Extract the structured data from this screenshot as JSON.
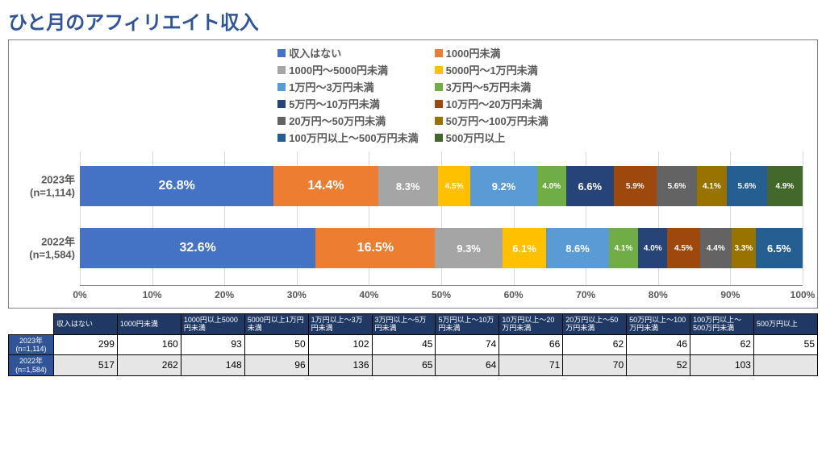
{
  "title": "ひと月のアフィリエイト収入",
  "colors": {
    "title": "#305496",
    "axis_text": "#595959",
    "grid": "#d9d9d9",
    "border": "#808080",
    "th_dark": "#203864",
    "th_row": "#305496",
    "alt_row": "#e7e6e6"
  },
  "categories": [
    {
      "label": "収入はない",
      "color": "#4472c4"
    },
    {
      "label": "1000円未満",
      "color": "#ed7d31"
    },
    {
      "label": "1000円～5000円未満",
      "color": "#a5a5a5"
    },
    {
      "label": "5000円～1万円未満",
      "color": "#ffc000"
    },
    {
      "label": "1万円～3万円未満",
      "color": "#5b9bd5"
    },
    {
      "label": "3万円～5万円未満",
      "color": "#70ad47"
    },
    {
      "label": "5万円～10万円未満",
      "color": "#264478"
    },
    {
      "label": "10万円～20万円未満",
      "color": "#9e480e"
    },
    {
      "label": "20万円～50万円未満",
      "color": "#636363"
    },
    {
      "label": "50万円～100万円未満",
      "color": "#997300"
    },
    {
      "label": "100万円以上～500万円未満",
      "color": "#255e91"
    },
    {
      "label": "500万円以上",
      "color": "#43682b"
    }
  ],
  "chart": {
    "type": "stacked_bar_horizontal_100pct",
    "xlim": [
      0,
      100
    ],
    "xtick_step": 10,
    "x_tick_labels": [
      "0%",
      "10%",
      "20%",
      "30%",
      "40%",
      "50%",
      "60%",
      "70%",
      "80%",
      "90%",
      "100%"
    ],
    "bars": [
      {
        "label_line1": "2023年",
        "label_line2": "(n=1,114)",
        "values": [
          26.8,
          14.4,
          8.3,
          4.5,
          9.2,
          4.0,
          6.6,
          5.9,
          5.6,
          4.1,
          5.6,
          4.9
        ],
        "value_labels": [
          "26.8%",
          "14.4%",
          "8.3%",
          "4.5%",
          "9.2%",
          "4.0%",
          "6.6%",
          "5.9%",
          "5.6%",
          "4.1%",
          "5.6%",
          "4.9%"
        ]
      },
      {
        "label_line1": "2022年",
        "label_line2": "(n=1,584)",
        "values": [
          32.6,
          16.5,
          9.3,
          6.1,
          8.6,
          4.1,
          4.0,
          4.5,
          4.4,
          3.3,
          6.5,
          0.0
        ],
        "value_labels": [
          "32.6%",
          "16.5%",
          "9.3%",
          "6.1%",
          "8.6%",
          "4.1%",
          "4.0%",
          "4.5%",
          "4.4%",
          "3.3%",
          "6.5%",
          ""
        ]
      }
    ]
  },
  "table": {
    "columns": [
      "収入はない",
      "1000円未満",
      "1000円以上5000円未満",
      "5000円以上1万円未満",
      "1万円以上～3万円未満",
      "3万円以上～5万円未満",
      "5万円以上～10万円未満",
      "10万円以上～20万円未満",
      "20万円以上～50万円未満",
      "50万円以上～100万円未満",
      "100万円以上～500万円未満",
      "500万円以上"
    ],
    "rows": [
      {
        "header_line1": "2023年",
        "header_line2": "(n=1,114)",
        "cells": [
          299,
          160,
          93,
          50,
          102,
          45,
          74,
          66,
          62,
          46,
          62,
          55
        ],
        "alt": false
      },
      {
        "header_line1": "2022年",
        "header_line2": "(n=1,584)",
        "cells": [
          517,
          262,
          148,
          96,
          136,
          65,
          64,
          71,
          70,
          52,
          103,
          null
        ],
        "alt": true
      }
    ]
  }
}
